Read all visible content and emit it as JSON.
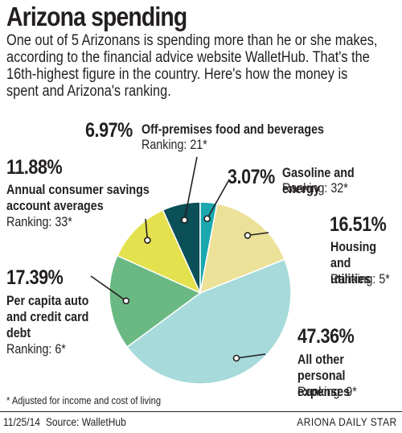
{
  "header": {
    "title": "Arizona spending",
    "intro": "One out of 5 Arizonans is spending more than he or she makes,\naccording to the financial advice website WalletHub. That's the\n16th-highest figure in the country. Here's how the money is\nspent and Arizona's ranking."
  },
  "chart_data": {
    "type": "pie",
    "slices": [
      {
        "percent": "6.97%",
        "value": 6.97,
        "label": "Off-premises food and beverages",
        "ranking": "Ranking: 21*",
        "color": "#0b4f57"
      },
      {
        "percent": "3.07%",
        "value": 3.07,
        "label": "Gasoline and energy",
        "ranking": "Ranking: 32*",
        "color": "#1ba7ae"
      },
      {
        "percent": "16.51%",
        "value": 16.51,
        "label": "Housing\nand utilities",
        "ranking": "Ranking: 5*",
        "color": "#ece198"
      },
      {
        "percent": "47.36%",
        "value": 47.36,
        "label": "All other personal\nexpenses",
        "ranking": "Ranking: 9*",
        "color": "#a7dada"
      },
      {
        "percent": "17.39%",
        "value": 17.39,
        "label": "Per capita auto\nand credit card\ndebt",
        "ranking": "Ranking: 6*",
        "color": "#6ab983"
      },
      {
        "percent": "11.88%",
        "value": 11.88,
        "label": "Annual consumer savings\naccount averages",
        "ranking": "Ranking: 33*",
        "color": "#e4e14f"
      }
    ]
  },
  "footnote": "* Adjusted for income and cost of living",
  "footer": {
    "date": "11/25/14",
    "source": "Source: WalletHub",
    "publisher": "ARIONA DAILY STAR"
  }
}
